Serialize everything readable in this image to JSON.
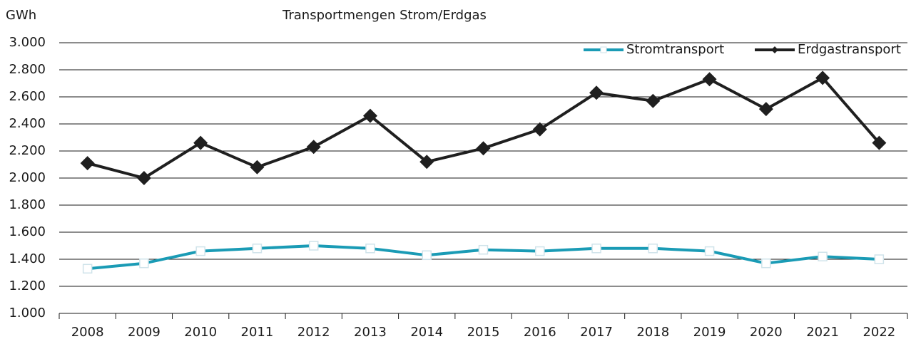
{
  "chart_data": {
    "type": "line",
    "title": "Transportmengen Strom/Erdgas",
    "y_label": "GWh",
    "categories": [
      "2008",
      "2009",
      "2010",
      "2011",
      "2012",
      "2013",
      "2014",
      "2015",
      "2016",
      "2017",
      "2018",
      "2019",
      "2020",
      "2021",
      "2022"
    ],
    "series": [
      {
        "name": "Stromtransport",
        "color": "#1a9bb5",
        "marker": "square",
        "values": [
          1330,
          1370,
          1460,
          1480,
          1500,
          1480,
          1430,
          1470,
          1460,
          1480,
          1480,
          1460,
          1370,
          1420,
          1400
        ]
      },
      {
        "name": "Erdgastransport",
        "color": "#1f1f1f",
        "marker": "diamond",
        "values": [
          2110,
          2000,
          2260,
          2080,
          2230,
          2460,
          2120,
          2220,
          2360,
          2630,
          2570,
          2730,
          2510,
          2740,
          2260
        ]
      }
    ],
    "ylim": [
      1000,
      3000
    ],
    "yticks": [
      {
        "value": 1000,
        "label": "1.000"
      },
      {
        "value": 1200,
        "label": "1.200"
      },
      {
        "value": 1400,
        "label": "1.400"
      },
      {
        "value": 1600,
        "label": "1.600"
      },
      {
        "value": 1800,
        "label": "1.800"
      },
      {
        "value": 2000,
        "label": "2.000"
      },
      {
        "value": 2200,
        "label": "2.200"
      },
      {
        "value": 2400,
        "label": "2.400"
      },
      {
        "value": 2600,
        "label": "2.600"
      },
      {
        "value": 2800,
        "label": "2.800"
      },
      {
        "value": 3000,
        "label": "3.000"
      }
    ],
    "grid": true,
    "legend": "top-right"
  }
}
